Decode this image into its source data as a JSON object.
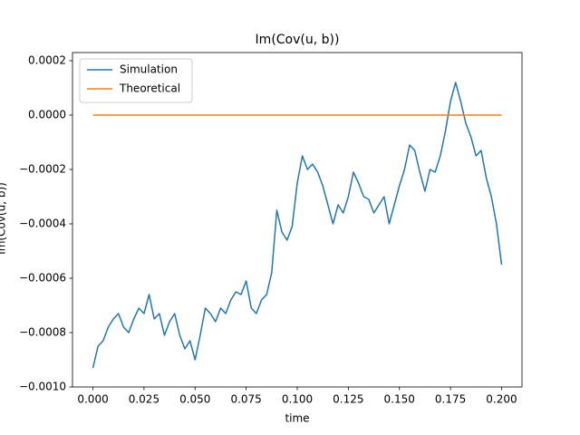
{
  "chart_data": {
    "type": "line",
    "title": "Im(Cov(u, b))",
    "xlabel": "time",
    "ylabel": "Im(Cov(u, b))",
    "x": [
      0,
      0.0025,
      0.005,
      0.0075,
      0.01,
      0.0125,
      0.015,
      0.0175,
      0.02,
      0.0225,
      0.025,
      0.0275,
      0.03,
      0.0325,
      0.035,
      0.0375,
      0.04,
      0.0425,
      0.045,
      0.0475,
      0.05,
      0.0525,
      0.055,
      0.0575,
      0.06,
      0.0625,
      0.065,
      0.0675,
      0.07,
      0.0725,
      0.075,
      0.0775,
      0.08,
      0.0825,
      0.085,
      0.0875,
      0.09,
      0.0925,
      0.095,
      0.0975,
      0.1,
      0.1025,
      0.105,
      0.1075,
      0.11,
      0.1125,
      0.115,
      0.1175,
      0.12,
      0.1225,
      0.125,
      0.1275,
      0.13,
      0.1325,
      0.135,
      0.1375,
      0.14,
      0.1425,
      0.145,
      0.1475,
      0.15,
      0.1525,
      0.155,
      0.1575,
      0.16,
      0.1625,
      0.165,
      0.1675,
      0.17,
      0.1725,
      0.175,
      0.1775,
      0.18,
      0.1825,
      0.185,
      0.1875,
      0.19,
      0.1925,
      0.195,
      0.1975,
      0.2
    ],
    "series": [
      {
        "name": "Simulation",
        "color": "#1f77b4",
        "values": [
          -0.00093,
          -0.00085,
          -0.00083,
          -0.00078,
          -0.00075,
          -0.00073,
          -0.00078,
          -0.0008,
          -0.00075,
          -0.00071,
          -0.00073,
          -0.00066,
          -0.00075,
          -0.00073,
          -0.00081,
          -0.00076,
          -0.00073,
          -0.00081,
          -0.00086,
          -0.00083,
          -0.0009,
          -0.00081,
          -0.00071,
          -0.00073,
          -0.00076,
          -0.00071,
          -0.00073,
          -0.00068,
          -0.00065,
          -0.00066,
          -0.00061,
          -0.00071,
          -0.00073,
          -0.00068,
          -0.00066,
          -0.00058,
          -0.00035,
          -0.00043,
          -0.00046,
          -0.00041,
          -0.00025,
          -0.00015,
          -0.0002,
          -0.00018,
          -0.00021,
          -0.00026,
          -0.00033,
          -0.0004,
          -0.00033,
          -0.00036,
          -0.0003,
          -0.00021,
          -0.00025,
          -0.0003,
          -0.00031,
          -0.00036,
          -0.00033,
          -0.0003,
          -0.0004,
          -0.00033,
          -0.00026,
          -0.0002,
          -0.00011,
          -0.00013,
          -0.00021,
          -0.00028,
          -0.0002,
          -0.00021,
          -0.00015,
          -6e-05,
          5e-05,
          0.00012,
          5e-05,
          -3e-05,
          -8e-05,
          -0.00015,
          -0.00013,
          -0.00023,
          -0.0003,
          -0.0004,
          -0.00055
        ]
      },
      {
        "name": "Theoretical",
        "color": "#ff7f0e",
        "values": [
          0,
          0,
          0,
          0,
          0,
          0,
          0,
          0,
          0,
          0,
          0,
          0,
          0,
          0,
          0,
          0,
          0,
          0,
          0,
          0,
          0,
          0,
          0,
          0,
          0,
          0,
          0,
          0,
          0,
          0,
          0,
          0,
          0,
          0,
          0,
          0,
          0,
          0,
          0,
          0,
          0,
          0,
          0,
          0,
          0,
          0,
          0,
          0,
          0,
          0,
          0,
          0,
          0,
          0,
          0,
          0,
          0,
          0,
          0,
          0,
          0,
          0,
          0,
          0,
          0,
          0,
          0,
          0,
          0,
          0,
          0,
          0,
          0,
          0,
          0,
          0,
          0,
          0,
          0,
          0,
          0
        ]
      }
    ],
    "xlim": [
      -0.01,
      0.21
    ],
    "ylim": [
      -0.001,
      0.00023
    ],
    "xticks": [
      {
        "value": 0,
        "label": "0.000"
      },
      {
        "value": 0.025,
        "label": "0.025"
      },
      {
        "value": 0.05,
        "label": "0.050"
      },
      {
        "value": 0.075,
        "label": "0.075"
      },
      {
        "value": 0.1,
        "label": "0.100"
      },
      {
        "value": 0.125,
        "label": "0.125"
      },
      {
        "value": 0.15,
        "label": "0.150"
      },
      {
        "value": 0.175,
        "label": "0.175"
      },
      {
        "value": 0.2,
        "label": "0.200"
      }
    ],
    "yticks": [
      {
        "value": -0.001,
        "label": "−0.0010"
      },
      {
        "value": -0.0008,
        "label": "−0.0008"
      },
      {
        "value": -0.0006,
        "label": "−0.0006"
      },
      {
        "value": -0.0004,
        "label": "−0.0004"
      },
      {
        "value": -0.0002,
        "label": "−0.0002"
      },
      {
        "value": 0,
        "label": "0.0000"
      },
      {
        "value": 0.0002,
        "label": "0.0002"
      }
    ],
    "legend": "upper left",
    "grid": false
  }
}
